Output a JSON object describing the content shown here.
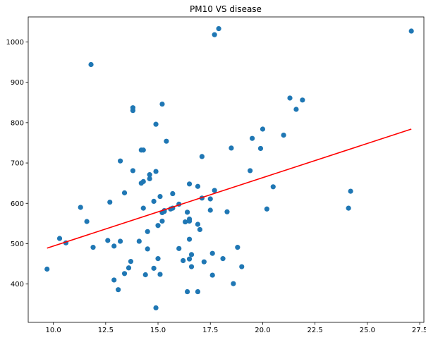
{
  "chart_data": {
    "type": "scatter",
    "title": "PM10 VS disease",
    "xlabel": "",
    "ylabel": "",
    "xlim": [
      8.8,
      27.7
    ],
    "ylim": [
      305,
      1062
    ],
    "xticks": [
      10.0,
      12.5,
      15.0,
      17.5,
      20.0,
      22.5,
      25.0,
      27.5
    ],
    "xtick_labels": [
      "10.0",
      "12.5",
      "15.0",
      "17.5",
      "20.0",
      "22.5",
      "25.0",
      "27.5"
    ],
    "yticks": [
      400,
      500,
      600,
      700,
      800,
      900,
      1000
    ],
    "ytick_labels": [
      "400",
      "500",
      "600",
      "700",
      "800",
      "900",
      "1000"
    ],
    "grid": false,
    "legend": "none",
    "colors": {
      "points": "#1f77b4",
      "fit_line": "#ff0000",
      "axes": "#000000",
      "background": "#ffffff"
    },
    "series": [
      {
        "type": "scatter",
        "x": [
          9.7,
          10.3,
          10.6,
          11.3,
          11.6,
          11.8,
          11.9,
          12.6,
          12.7,
          12.9,
          12.9,
          13.1,
          13.2,
          13.2,
          13.4,
          13.4,
          13.6,
          13.7,
          13.8,
          13.8,
          13.8,
          14.1,
          14.2,
          14.2,
          14.3,
          14.3,
          14.3,
          14.4,
          14.5,
          14.5,
          14.6,
          14.6,
          14.8,
          14.8,
          14.9,
          14.9,
          14.9,
          15.0,
          15.0,
          15.1,
          15.1,
          15.2,
          15.2,
          15.2,
          15.3,
          15.3,
          15.4,
          15.6,
          15.7,
          15.7,
          16.0,
          16.0,
          16.2,
          16.3,
          16.4,
          16.4,
          16.5,
          16.5,
          16.5,
          16.5,
          16.5,
          16.6,
          16.6,
          16.9,
          16.9,
          16.9,
          17.0,
          17.1,
          17.1,
          17.2,
          17.5,
          17.5,
          17.6,
          17.6,
          17.7,
          17.7,
          17.9,
          18.1,
          18.3,
          18.5,
          18.6,
          18.8,
          19.0,
          19.4,
          19.5,
          19.9,
          20.0,
          20.2,
          20.5,
          21.0,
          21.3,
          21.6,
          21.9,
          24.1,
          24.2,
          27.1
        ],
        "y": [
          437,
          513,
          502,
          590,
          555,
          944,
          491,
          508,
          603,
          410,
          494,
          386,
          705,
          506,
          426,
          626,
          440,
          456,
          681,
          830,
          837,
          506,
          732,
          650,
          588,
          732,
          654,
          423,
          487,
          530,
          661,
          671,
          605,
          439,
          341,
          679,
          796,
          463,
          545,
          424,
          617,
          577,
          556,
          846,
          580,
          582,
          754,
          586,
          588,
          624,
          488,
          598,
          458,
          554,
          381,
          578,
          511,
          648,
          561,
          462,
          556,
          473,
          443,
          381,
          642,
          548,
          535,
          613,
          716,
          455,
          583,
          611,
          476,
          422,
          632,
          1018,
          1033,
          463,
          579,
          737,
          401,
          491,
          443,
          681,
          761,
          736,
          784,
          586,
          641,
          769,
          861,
          833,
          856,
          588,
          630,
          1027
        ]
      },
      {
        "type": "line",
        "name": "",
        "x": [
          9.7,
          27.1
        ],
        "y": [
          489,
          784
        ]
      }
    ]
  }
}
